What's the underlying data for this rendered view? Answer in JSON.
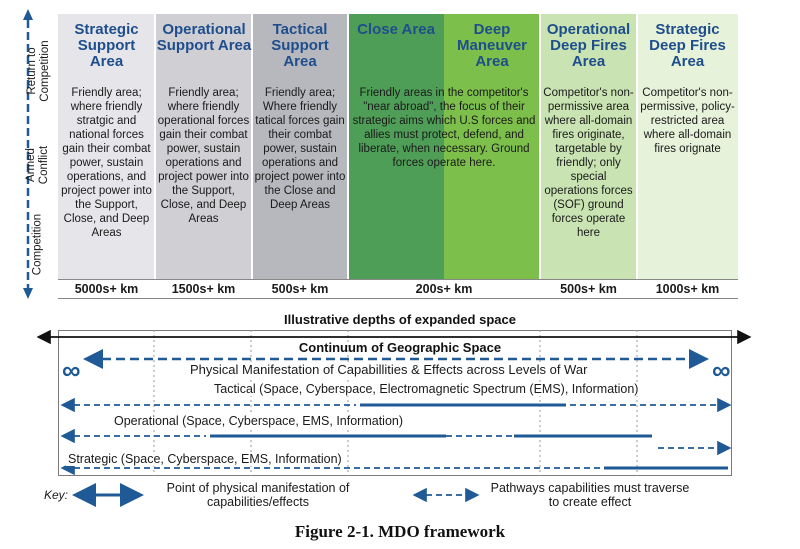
{
  "colors": {
    "accent": "#1f5a96",
    "title_blue": "#1f4e8c",
    "strategic_support": "#e6e6ea",
    "operational_support": "#cfcfd4",
    "tactical_support": "#b7b8be",
    "close": "#4f9e57",
    "deep_maneuver": "#7cbf4a",
    "operational_fires": "#c9e4b2",
    "strategic_fires": "#e6f2da"
  },
  "left_axis": {
    "return": "Return to Competition",
    "armed": "Armed Conflict",
    "competition": "Competition"
  },
  "columns": [
    {
      "title": "Strategic Support Area",
      "desc": "Friendly area; where friendly stratgic and national forces gain their combat power, sustain operations, and project power into the Support, Close, and Deep Areas",
      "distance": "5000s+ km"
    },
    {
      "title": "Operational Support Area",
      "desc": "Friendly area; where friendly operational forces gain their combat power, sustain operations and project power into the Support, Close, and Deep Areas",
      "distance": "1500s+ km"
    },
    {
      "title": "Tactical Support Area",
      "desc": "Friendly area; Where friendly tatical forces gain their combat power, sustain operations and project power into the Close and Deep Areas",
      "distance": "500s+ km"
    },
    {
      "title": "Close Area",
      "desc": "",
      "distance": ""
    },
    {
      "title": "Deep Maneuver Area",
      "desc": "",
      "distance": "200s+ km"
    },
    {
      "title": "Operational Deep Fires Area",
      "desc": "Competitor's non-permissive area where all-domain fires originate, targetable by friendly; only special operations forces (SOF) ground forces operate here",
      "distance": "500s+ km"
    },
    {
      "title": "Strategic Deep Fires Area",
      "desc": "Competitor's non-permissive, policy-restricted area where all-domain fires orignate",
      "distance": "1000s+ km"
    }
  ],
  "close_deep_desc": "Friendly areas in the competitor's \"near abroad\", the focus of their strategic aims which U.S forces and allies must protect, defend, and liberate, when necessary. Ground forces operate here.",
  "depth_label": "Illustrative depths of expanded space",
  "continuum": {
    "title": "Continuum of Geographic Space",
    "infinity": "∞",
    "physical": "Physical Manifestation of Capabillities & Effects across Levels of War",
    "tactical": "Tactical (Space, Cyberspace, Electromagnetic Spectrum (EMS), Information)",
    "operational": "Operational (Space, Cyberspace, EMS, Information)",
    "strategic": "Strategic (Space, Cyberspace, EMS, Information)"
  },
  "key": {
    "label": "Key:",
    "solid": "Point of physical manifestation of capabilities/effects",
    "dashed": "Pathways capabilities must traverse to create effect"
  },
  "caption": "Figure 2-1.  MDO framework"
}
